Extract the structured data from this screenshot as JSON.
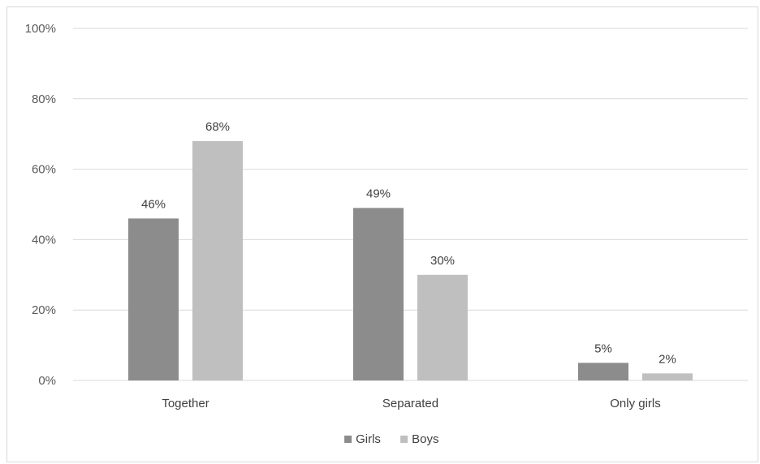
{
  "chart_data": {
    "type": "bar",
    "categories": [
      "Together",
      "Separated",
      "Only girls"
    ],
    "series": [
      {
        "name": "Girls",
        "values": [
          46,
          49,
          5
        ],
        "labels": [
          "46%",
          "49%",
          "5%"
        ],
        "color": "#8c8c8c"
      },
      {
        "name": "Boys",
        "values": [
          68,
          30,
          2
        ],
        "labels": [
          "68%",
          "30%",
          "2%"
        ],
        "color": "#bfbfbf"
      }
    ],
    "ylim": [
      0,
      100
    ],
    "yticks": [
      0,
      20,
      40,
      60,
      80,
      100
    ],
    "ytick_labels": [
      "0%",
      "20%",
      "40%",
      "60%",
      "80%",
      "100%"
    ],
    "grid": true,
    "gridline_color": "#d9d9d9",
    "legend_position": "bottom"
  }
}
